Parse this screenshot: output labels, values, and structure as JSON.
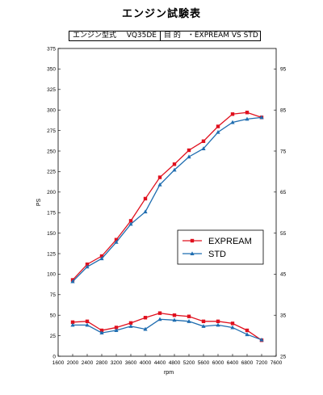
{
  "header": {
    "title": "エンジン試験表",
    "engine_label": "エンジン型式",
    "engine_value": "VQ35DE",
    "purpose_label": "目 的",
    "purpose_value": "・EXPREAM VS STD"
  },
  "chart_data": {
    "type": "line",
    "xlabel": "rpm",
    "ylabel": "PS",
    "xlim": [
      1600,
      7600
    ],
    "ylim": [
      0,
      375
    ],
    "y2lim": [
      25,
      100
    ],
    "x_ticks": [
      1600,
      2000,
      2400,
      2800,
      3200,
      3600,
      4000,
      4400,
      4800,
      5200,
      5600,
      6000,
      6400,
      6800,
      7200,
      7600
    ],
    "y_ticks": [
      0,
      25,
      50,
      75,
      100,
      125,
      150,
      175,
      200,
      225,
      250,
      275,
      300,
      325,
      350,
      375
    ],
    "y2_ticks": [
      25,
      35,
      45,
      55,
      65,
      75,
      85,
      95
    ],
    "grid": false,
    "legend_position": "right-center",
    "x": [
      2000,
      2400,
      2800,
      3200,
      3600,
      4000,
      4400,
      4800,
      5200,
      5600,
      6000,
      6400,
      6800,
      7200
    ],
    "series": [
      {
        "name": "EXPREAM",
        "axis": "left",
        "color": "#e0101e",
        "marker": "square",
        "values": [
          93,
          112,
          122,
          142,
          165,
          192,
          218,
          234,
          251,
          262,
          280,
          295,
          297,
          291
        ]
      },
      {
        "name": "STD",
        "axis": "left",
        "color": "#1f6db0",
        "marker": "triangle",
        "values": [
          91,
          109,
          119,
          139,
          161,
          176,
          209,
          227,
          243,
          253,
          273,
          285,
          289,
          291
        ]
      },
      {
        "name": "EXPREAM",
        "axis": "right",
        "color": "#e0101e",
        "marker": "square",
        "values": [
          33.3,
          33.5,
          31.3,
          32.0,
          33.1,
          34.4,
          35.5,
          35.0,
          34.7,
          33.5,
          33.5,
          33.0,
          31.3,
          28.9
        ]
      },
      {
        "name": "STD",
        "axis": "right",
        "color": "#1f6db0",
        "marker": "triangle",
        "values": [
          32.6,
          32.6,
          30.7,
          31.3,
          32.3,
          31.6,
          34.0,
          33.8,
          33.5,
          32.3,
          32.6,
          32.0,
          30.3,
          29.0
        ]
      }
    ]
  }
}
